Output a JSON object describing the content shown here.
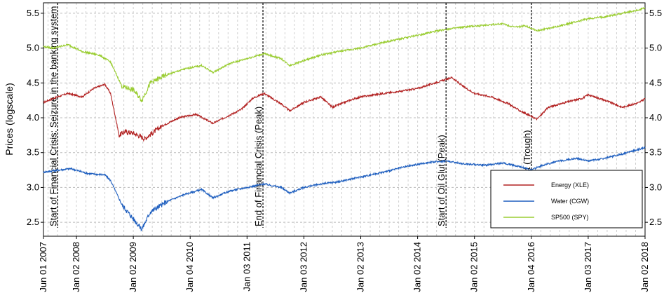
{
  "chart_data": {
    "type": "line",
    "ylabel": "Prices (logscale)",
    "ylim": [
      2.3,
      5.65
    ],
    "y_ticks": [
      "2.5",
      "3.0",
      "3.5",
      "4.0",
      "4.5",
      "5.0",
      "5.5"
    ],
    "x_ticks": [
      "Jun 01 2007",
      "Jan 02 2008",
      "Jan 02 2009",
      "Jan 04 2010",
      "Jan 03 2011",
      "Jan 03 2012",
      "Jan 02 2013",
      "Jan 02 2014",
      "Jan 02 2015",
      "Jan 04 2016",
      "Jan 03 2017",
      "Jan 02 2018"
    ],
    "x_tick_years": [
      2007.42,
      2008.0,
      2009.0,
      2010.0,
      2011.0,
      2012.0,
      2013.0,
      2014.0,
      2015.0,
      2016.0,
      2017.0,
      2018.0
    ],
    "xlim": [
      2007.42,
      2018.0
    ],
    "grid": true,
    "legend_position": "bottom-right",
    "events": [
      {
        "x": 2007.67,
        "label": "Start of Financial Crisis: Seizure in the banking system"
      },
      {
        "x": 2011.28,
        "label": "End of Financial Crisis (Peak)"
      },
      {
        "x": 2014.5,
        "label": "Start of Oil Glut (Peak)"
      },
      {
        "x": 2016.0,
        "label": "End of Oil Glut (Trough)"
      }
    ],
    "series": [
      {
        "name": "Energy (XLE)",
        "color": "#b22222",
        "x": [
          2007.42,
          2007.6,
          2007.85,
          2008.1,
          2008.3,
          2008.5,
          2008.6,
          2008.75,
          2008.85,
          2009.0,
          2009.2,
          2009.5,
          2009.8,
          2010.1,
          2010.4,
          2010.6,
          2010.9,
          2011.1,
          2011.3,
          2011.6,
          2011.75,
          2012.0,
          2012.3,
          2012.5,
          2012.8,
          2013.0,
          2013.4,
          2013.7,
          2014.0,
          2014.3,
          2014.5,
          2014.6,
          2014.8,
          2015.0,
          2015.3,
          2015.6,
          2015.8,
          2016.0,
          2016.1,
          2016.3,
          2016.6,
          2016.9,
          2017.0,
          2017.3,
          2017.6,
          2017.9,
          2018.0
        ],
        "values": [
          4.22,
          4.28,
          4.35,
          4.3,
          4.42,
          4.48,
          4.35,
          3.75,
          3.8,
          3.78,
          3.7,
          3.88,
          4.0,
          4.05,
          3.92,
          4.0,
          4.12,
          4.28,
          4.35,
          4.2,
          4.1,
          4.22,
          4.3,
          4.15,
          4.25,
          4.3,
          4.35,
          4.38,
          4.42,
          4.5,
          4.55,
          4.58,
          4.45,
          4.35,
          4.3,
          4.2,
          4.1,
          4.02,
          3.98,
          4.15,
          4.22,
          4.28,
          4.33,
          4.25,
          4.15,
          4.22,
          4.28
        ]
      },
      {
        "name": "Water (CGW)",
        "color": "#1f5fbf",
        "x": [
          2007.42,
          2007.6,
          2007.9,
          2008.2,
          2008.5,
          2008.6,
          2008.8,
          2009.0,
          2009.15,
          2009.3,
          2009.6,
          2009.9,
          2010.2,
          2010.4,
          2010.7,
          2011.0,
          2011.3,
          2011.6,
          2011.75,
          2012.0,
          2012.3,
          2012.6,
          2013.0,
          2013.4,
          2013.8,
          2014.2,
          2014.5,
          2014.8,
          2015.2,
          2015.5,
          2015.8,
          2016.0,
          2016.2,
          2016.5,
          2016.8,
          2017.0,
          2017.3,
          2017.6,
          2017.9,
          2018.0
        ],
        "values": [
          3.22,
          3.24,
          3.27,
          3.2,
          3.18,
          3.1,
          2.75,
          2.55,
          2.4,
          2.65,
          2.8,
          2.9,
          2.97,
          2.85,
          2.95,
          3.0,
          3.05,
          3.0,
          2.92,
          3.0,
          3.05,
          3.08,
          3.15,
          3.22,
          3.3,
          3.36,
          3.38,
          3.34,
          3.32,
          3.35,
          3.3,
          3.25,
          3.32,
          3.38,
          3.42,
          3.38,
          3.42,
          3.48,
          3.55,
          3.57
        ]
      },
      {
        "name": "SP500 (SPY)",
        "color": "#9acd32",
        "x": [
          2007.42,
          2007.6,
          2007.85,
          2008.1,
          2008.4,
          2008.6,
          2008.8,
          2009.0,
          2009.15,
          2009.3,
          2009.6,
          2009.9,
          2010.2,
          2010.4,
          2010.7,
          2011.0,
          2011.3,
          2011.6,
          2011.75,
          2012.0,
          2012.3,
          2012.6,
          2013.0,
          2013.4,
          2013.8,
          2014.2,
          2014.5,
          2014.8,
          2015.2,
          2015.5,
          2015.7,
          2015.9,
          2016.1,
          2016.4,
          2016.8,
          2017.0,
          2017.3,
          2017.6,
          2017.9,
          2018.0
        ],
        "values": [
          5.02,
          5.0,
          5.05,
          4.95,
          4.9,
          4.8,
          4.45,
          4.4,
          4.25,
          4.5,
          4.62,
          4.7,
          4.75,
          4.65,
          4.78,
          4.85,
          4.92,
          4.85,
          4.75,
          4.82,
          4.9,
          4.95,
          5.0,
          5.08,
          5.15,
          5.22,
          5.27,
          5.3,
          5.33,
          5.35,
          5.3,
          5.32,
          5.25,
          5.3,
          5.38,
          5.42,
          5.45,
          5.5,
          5.55,
          5.58
        ]
      }
    ]
  }
}
